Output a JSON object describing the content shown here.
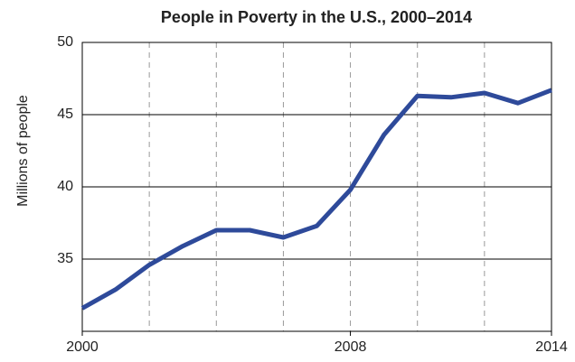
{
  "chart_data": {
    "type": "line",
    "title": "People in Poverty in the U.S., 2000–2014",
    "ylabel": "Millions of people",
    "x": [
      2000,
      2001,
      2002,
      2003,
      2004,
      2005,
      2006,
      2007,
      2008,
      2009,
      2010,
      2011,
      2012,
      2013,
      2014
    ],
    "series": [
      {
        "name": "People in poverty",
        "color": "#2e4a9a",
        "values": [
          31.6,
          32.9,
          34.6,
          35.9,
          37.0,
          37.0,
          36.5,
          37.3,
          39.8,
          43.6,
          46.3,
          46.2,
          46.5,
          45.8,
          46.7
        ]
      }
    ],
    "xlim": [
      2000,
      2014
    ],
    "xticks": [
      2000,
      2008,
      2014
    ],
    "xgrid_lines": [
      2002,
      2004,
      2006,
      2008,
      2010,
      2012
    ],
    "ylim": [
      30,
      50
    ],
    "yticks": [
      35,
      40,
      45,
      50
    ],
    "grid": true
  }
}
